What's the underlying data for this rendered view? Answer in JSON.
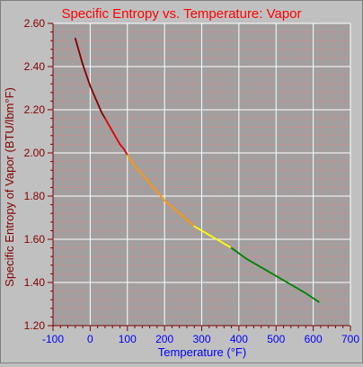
{
  "chart_data": {
    "type": "line",
    "title": "Specific Entropy vs. Temperature: Vapor",
    "xlabel": "Temperature (°F)",
    "ylabel": "Specific Entropy of Vapor (BTU/lbm°F)",
    "xlim": [
      -100,
      700
    ],
    "ylim": [
      1.2,
      2.6
    ],
    "x_ticks": [
      -100,
      0,
      100,
      200,
      300,
      400,
      500,
      600,
      700
    ],
    "x_tick_labels": [
      "-100",
      "0",
      "100",
      "200",
      "300",
      "400",
      "500",
      "600",
      "700"
    ],
    "y_ticks": [
      1.2,
      1.4,
      1.6,
      1.8,
      2.0,
      2.2,
      2.4,
      2.6
    ],
    "y_tick_labels": [
      "1.20",
      "1.40",
      "1.60",
      "1.80",
      "2.00",
      "2.20",
      "2.40",
      "2.60"
    ],
    "grid": true,
    "series": [
      {
        "color": "#800000",
        "x": [
          -40,
          -30,
          -20,
          -10,
          0,
          10,
          20,
          30,
          40
        ],
        "y": [
          2.53,
          2.47,
          2.41,
          2.36,
          2.31,
          2.27,
          2.23,
          2.19,
          2.16
        ]
      },
      {
        "color": "#e00000",
        "x": [
          40,
          50,
          60,
          70,
          80,
          90,
          100
        ],
        "y": [
          2.16,
          2.13,
          2.1,
          2.07,
          2.04,
          2.02,
          1.99
        ]
      },
      {
        "color": "#ff9900",
        "x": [
          100,
          120,
          140,
          160,
          180,
          200,
          220,
          240,
          260,
          280
        ],
        "y": [
          1.99,
          1.94,
          1.9,
          1.86,
          1.82,
          1.78,
          1.75,
          1.72,
          1.69,
          1.66
        ]
      },
      {
        "color": "#ffff00",
        "x": [
          280,
          300,
          320,
          340,
          360,
          380
        ],
        "y": [
          1.66,
          1.64,
          1.62,
          1.6,
          1.58,
          1.56
        ]
      },
      {
        "color": "#008000",
        "x": [
          380,
          420,
          460,
          500,
          540,
          580,
          615
        ],
        "y": [
          1.56,
          1.51,
          1.47,
          1.43,
          1.39,
          1.35,
          1.31
        ]
      }
    ],
    "colors": {
      "background": "#c0c0c0",
      "plot_area": "#a0a0a0",
      "grid_major": "#ffffff",
      "grid_minor": "#d08c8c",
      "tick": "#800000",
      "title": "#ff0000",
      "axis_label": "#0000ff",
      "y_tick_label": "#800000",
      "x_tick_label": "#0000ff"
    }
  }
}
